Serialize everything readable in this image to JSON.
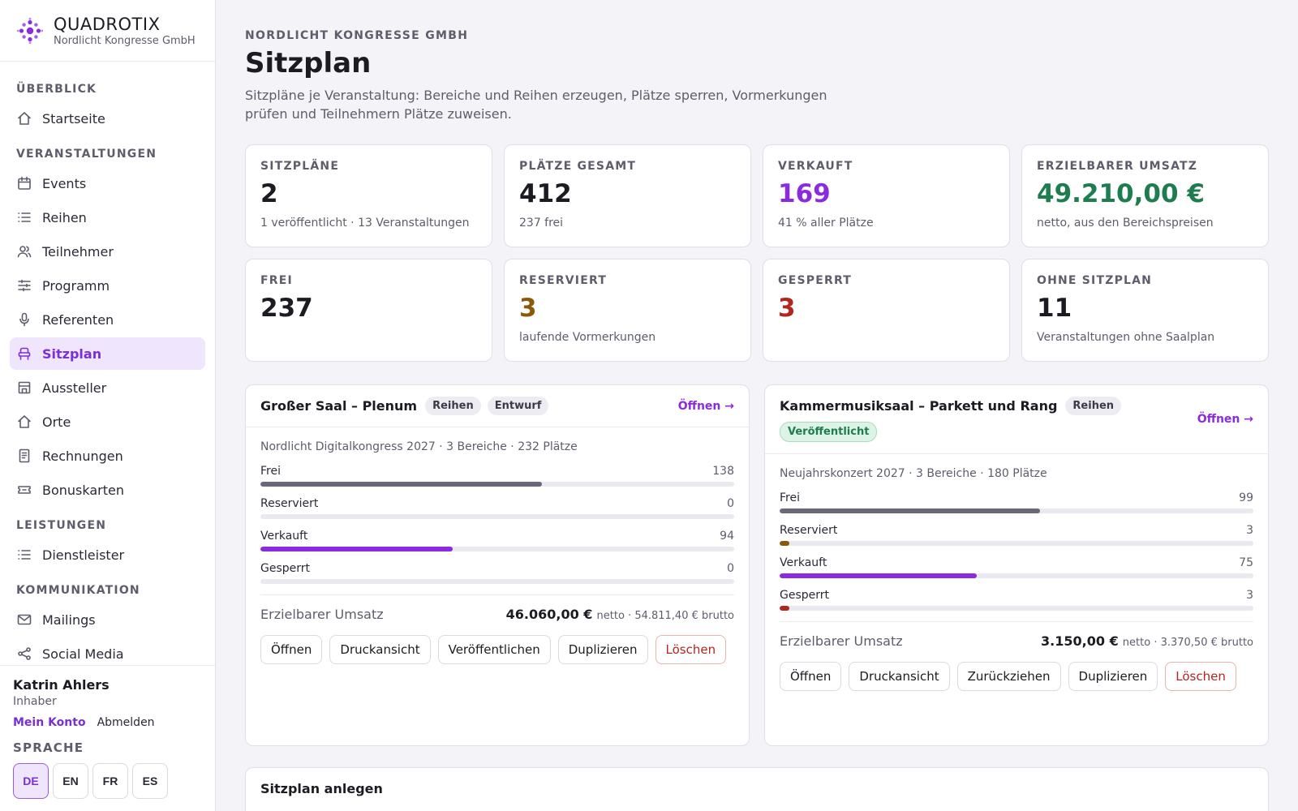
{
  "brand": {
    "name": "QUADROTIX",
    "org": "Nordlicht Kongresse GmbH",
    "accent": "#8a2be2"
  },
  "nav": {
    "sections": [
      {
        "title": "ÜBERBLICK",
        "items": [
          {
            "label": "Startseite",
            "icon": "home-icon"
          }
        ]
      },
      {
        "title": "VERANSTALTUNGEN",
        "items": [
          {
            "label": "Events",
            "icon": "calendar-icon"
          },
          {
            "label": "Reihen",
            "icon": "list-icon"
          },
          {
            "label": "Teilnehmer",
            "icon": "users-icon"
          },
          {
            "label": "Programm",
            "icon": "sliders-icon"
          },
          {
            "label": "Referenten",
            "icon": "microphone-icon"
          },
          {
            "label": "Sitzplan",
            "icon": "seat-icon",
            "active": true
          },
          {
            "label": "Aussteller",
            "icon": "store-icon"
          },
          {
            "label": "Orte",
            "icon": "home-icon"
          },
          {
            "label": "Rechnungen",
            "icon": "receipt-icon"
          },
          {
            "label": "Bonuskarten",
            "icon": "ticket-icon"
          }
        ]
      },
      {
        "title": "LEISTUNGEN",
        "items": [
          {
            "label": "Dienstleister",
            "icon": "list-icon"
          }
        ]
      },
      {
        "title": "KOMMUNIKATION",
        "items": [
          {
            "label": "Mailings",
            "icon": "mail-icon"
          },
          {
            "label": "Social Media",
            "icon": "share-icon"
          }
        ]
      }
    ]
  },
  "user": {
    "name": "Katrin Ahlers",
    "role": "Inhaber",
    "account_label": "Mein Konto",
    "logout_label": "Abmelden"
  },
  "language": {
    "label": "SPRACHE",
    "options": [
      "DE",
      "EN",
      "FR",
      "ES"
    ],
    "active": "DE"
  },
  "header": {
    "eyebrow": "NORDLICHT KONGRESSE GMBH",
    "title": "Sitzplan",
    "description": "Sitzpläne je Veranstaltung: Bereiche und Reihen erzeugen, Plätze sperren, Vormerkungen prüfen und Teilnehmern Plätze zuweisen."
  },
  "kpis": [
    {
      "label": "SITZPLÄNE",
      "value": "2",
      "sub": "1 veröffentlicht · 13 Veranstaltungen",
      "color": ""
    },
    {
      "label": "PLÄTZE GESAMT",
      "value": "412",
      "sub": "237 frei",
      "color": ""
    },
    {
      "label": "VERKAUFT",
      "value": "169",
      "sub": "41 % aller Plätze",
      "color": "purple"
    },
    {
      "label": "ERZIELBARER UMSATZ",
      "value": "49.210,00 €",
      "sub": "netto, aus den Bereichspreisen",
      "color": "green"
    },
    {
      "label": "FREI",
      "value": "237",
      "sub": "",
      "color": ""
    },
    {
      "label": "RESERVIERT",
      "value": "3",
      "sub": "laufende Vormerkungen",
      "color": "amber"
    },
    {
      "label": "GESPERRT",
      "value": "3",
      "sub": "",
      "color": "red"
    },
    {
      "label": "OHNE SITZPLAN",
      "value": "11",
      "sub": "Veranstaltungen ohne Saalplan",
      "color": ""
    }
  ],
  "plans": [
    {
      "name": "Großer Saal – Plenum",
      "badges": [
        {
          "label": "Reihen",
          "tone": "gray"
        },
        {
          "label": "Entwurf",
          "tone": "gray"
        }
      ],
      "open_label": "Öffnen →",
      "meta": "Nordlicht Digitalkongress 2027 · 3 Bereiche · 232 Plätze",
      "total": 232,
      "stats": [
        {
          "label": "Frei",
          "value": 138,
          "kind": "free"
        },
        {
          "label": "Reserviert",
          "value": 0,
          "kind": "res"
        },
        {
          "label": "Verkauft",
          "value": 94,
          "kind": "sold"
        },
        {
          "label": "Gesperrt",
          "value": 0,
          "kind": "lock"
        }
      ],
      "revenue_label": "Erzielbarer Umsatz",
      "revenue_net": "46.060,00 €",
      "revenue_rest": "netto · 54.811,40 € brutto",
      "actions": [
        "Öffnen",
        "Druckansicht",
        "Veröffentlichen",
        "Duplizieren"
      ],
      "delete_label": "Löschen"
    },
    {
      "name": "Kammermusiksaal – Parkett und Rang",
      "badges": [
        {
          "label": "Reihen",
          "tone": "gray"
        },
        {
          "label": "Veröffentlicht",
          "tone": "green"
        }
      ],
      "open_label": "Öffnen →",
      "meta": "Neujahrskonzert 2027 · 3 Bereiche · 180 Plätze",
      "total": 180,
      "stats": [
        {
          "label": "Frei",
          "value": 99,
          "kind": "free"
        },
        {
          "label": "Reserviert",
          "value": 3,
          "kind": "res"
        },
        {
          "label": "Verkauft",
          "value": 75,
          "kind": "sold"
        },
        {
          "label": "Gesperrt",
          "value": 3,
          "kind": "lock"
        }
      ],
      "revenue_label": "Erzielbarer Umsatz",
      "revenue_net": "3.150,00 €",
      "revenue_rest": "netto · 3.370,50 € brutto",
      "actions": [
        "Öffnen",
        "Druckansicht",
        "Zurückziehen",
        "Duplizieren"
      ],
      "delete_label": "Löschen"
    }
  ],
  "create": {
    "title": "Sitzplan anlegen"
  }
}
